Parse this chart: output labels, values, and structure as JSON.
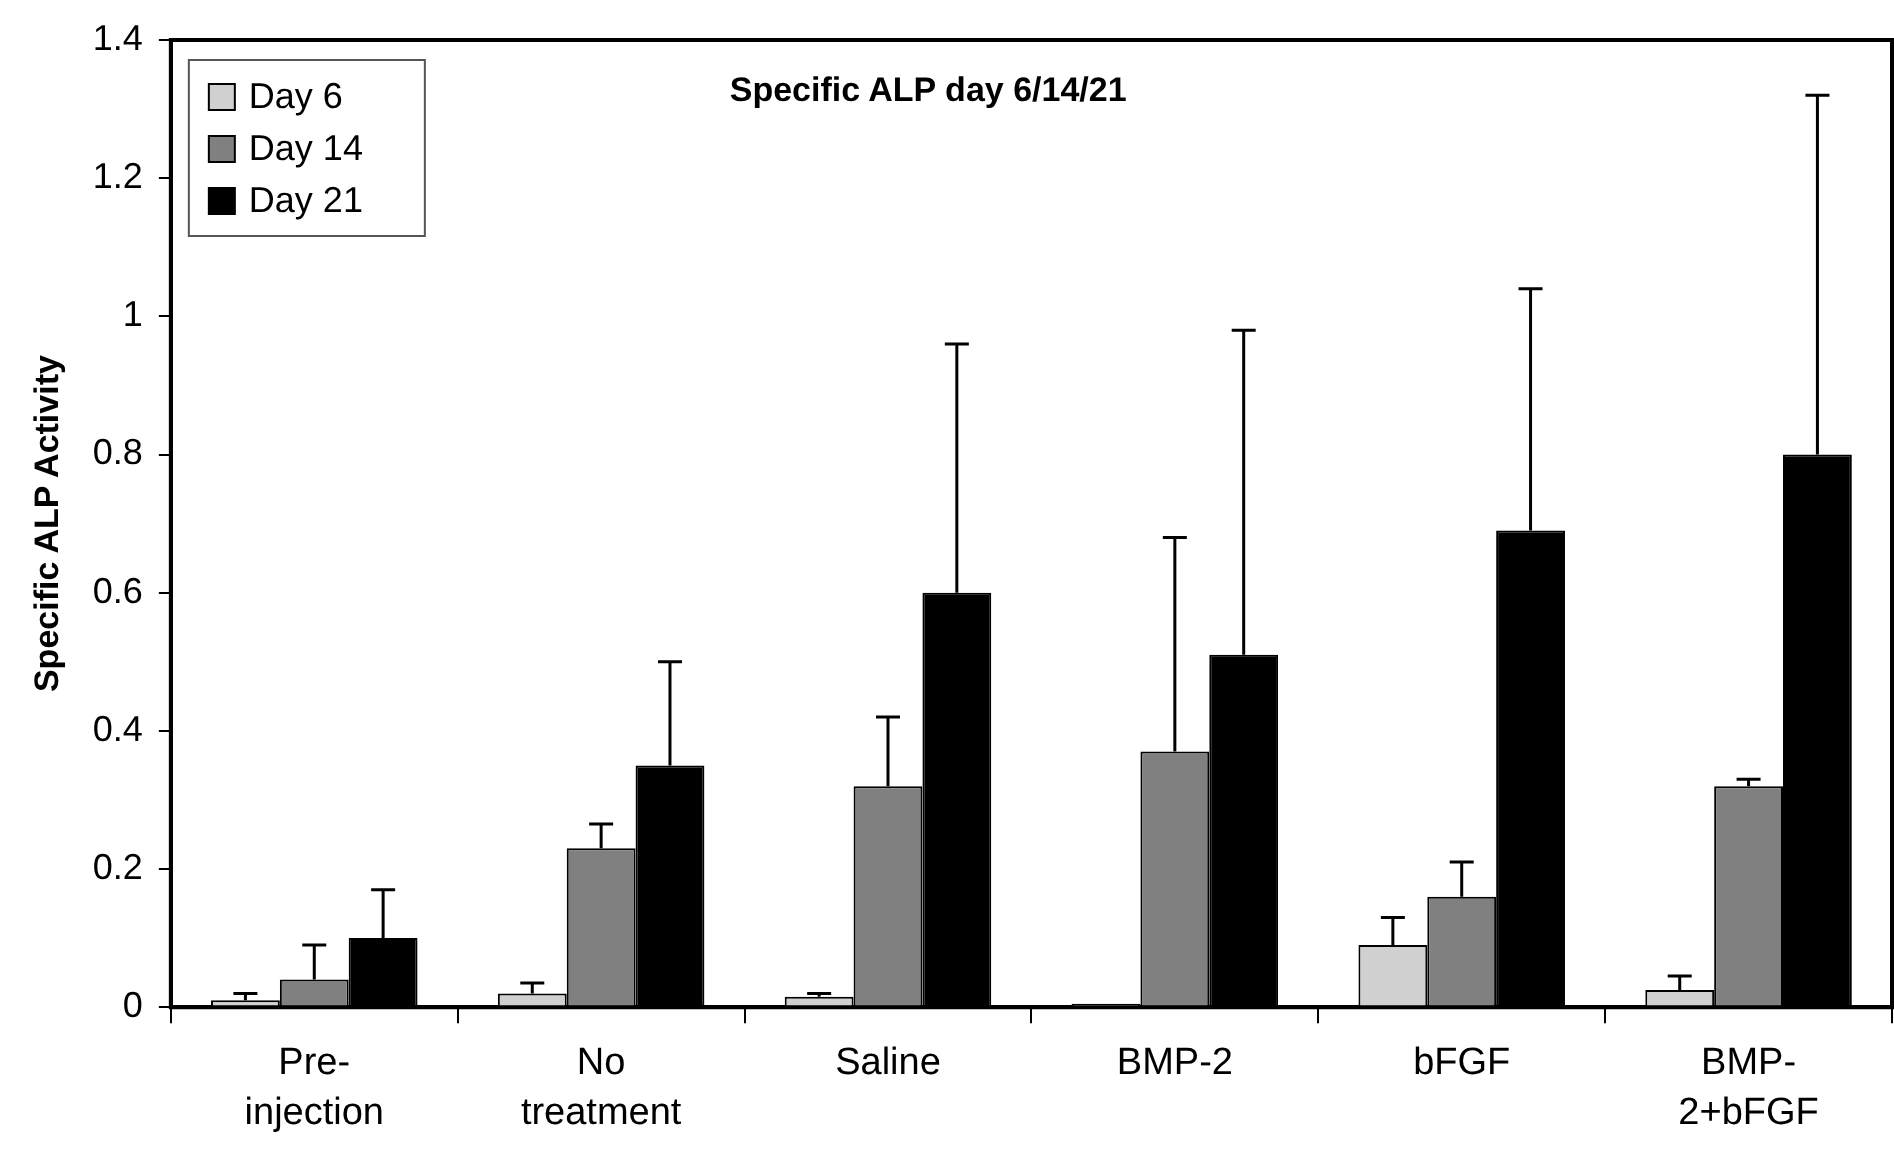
{
  "chart_data": {
    "type": "bar",
    "title": "Specific ALP day 6/14/21",
    "ylabel": "Specific ALP Activity",
    "categories": [
      "Pre-\ninjection",
      "No\ntreatment",
      "Saline",
      "BMP-2",
      "bFGF",
      "BMP-\n2+bFGF"
    ],
    "series": [
      {
        "name": "Day 6",
        "color": "#d0d0d0",
        "values": [
          0.01,
          0.02,
          0.015,
          0.005,
          0.09,
          0.025
        ],
        "errors": [
          [
            0.01,
            0.02
          ],
          [
            0.02,
            0.035
          ],
          [
            0.015,
            0.02
          ],
          null,
          [
            0.09,
            0.13
          ],
          [
            0.025,
            0.045
          ]
        ]
      },
      {
        "name": "Day 14",
        "color": "#808080",
        "values": [
          0.04,
          0.23,
          0.32,
          0.37,
          0.16,
          0.32
        ],
        "errors": [
          [
            0.04,
            0.09
          ],
          [
            0.23,
            0.265
          ],
          [
            0.32,
            0.42
          ],
          [
            0.37,
            0.68
          ],
          [
            0.16,
            0.21
          ],
          [
            0.32,
            0.33
          ]
        ]
      },
      {
        "name": "Day 21",
        "color": "#000000",
        "values": [
          0.1,
          0.35,
          0.6,
          0.51,
          0.69,
          0.8
        ],
        "errors": [
          [
            0.1,
            0.17
          ],
          [
            0.35,
            0.5
          ],
          [
            0.6,
            0.96
          ],
          [
            0.51,
            0.98
          ],
          [
            0.69,
            1.04
          ],
          [
            0.8,
            1.32
          ]
        ]
      }
    ],
    "ylim": [
      0,
      1.4
    ],
    "yticks": [
      0,
      0.2,
      0.4,
      0.6,
      0.8,
      1,
      1.2,
      1.4
    ],
    "grid": false,
    "legend": "top left"
  }
}
